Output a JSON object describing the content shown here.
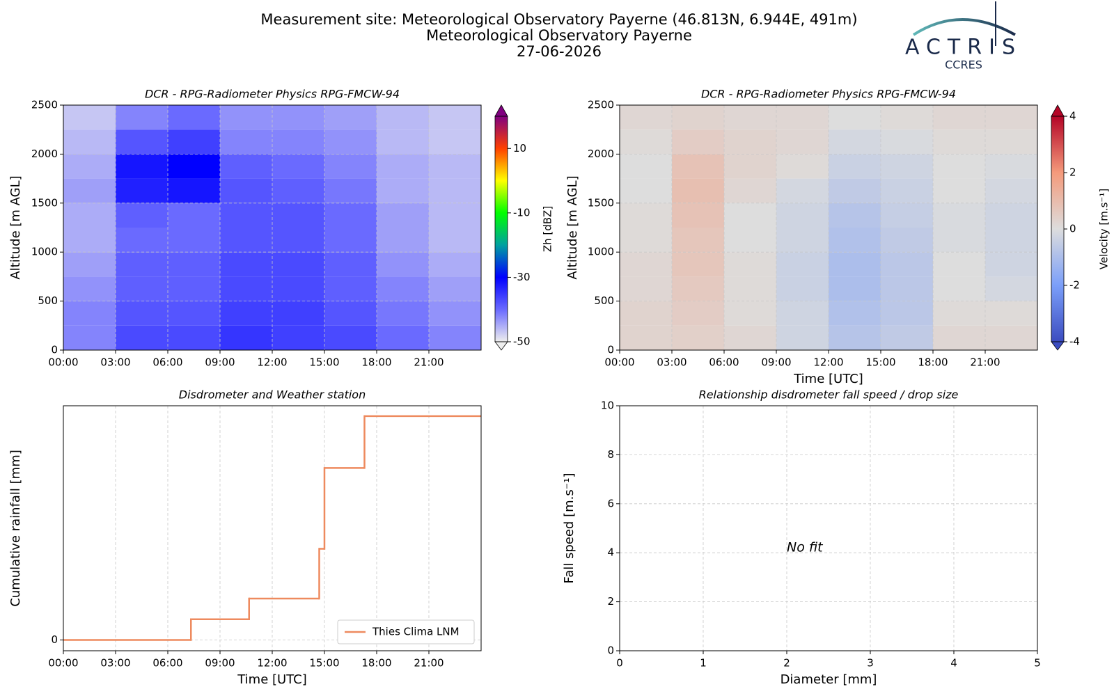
{
  "header": {
    "title_lines": [
      "Measurement site: Meteorological Observatory Payerne (46.813N, 6.944E, 491m)",
      "Meteorological Observatory Payerne",
      "27-06-2026"
    ]
  },
  "logo": {
    "name": "ACTRIS",
    "subtitle": "CCRES"
  },
  "chart_data": [
    {
      "type": "heatmap",
      "title": "DCR - RPG-Radiometer Physics RPG-FMCW-94",
      "ylabel": "Altitude [m AGL]",
      "x_edges": [
        0,
        3,
        6,
        9,
        12,
        15,
        18,
        21,
        24
      ],
      "y_edges": [
        0,
        250,
        500,
        750,
        1000,
        1250,
        1500,
        1750,
        2000,
        2250,
        2500
      ],
      "z": [
        [
          -42,
          -37,
          -37,
          -35,
          -36,
          -37,
          -40,
          -42
        ],
        [
          -42,
          -38,
          -38,
          -36,
          -36,
          -38,
          -41,
          -43
        ],
        [
          -43,
          -39,
          -39,
          -37,
          -37,
          -39,
          -42,
          -44
        ],
        [
          -44,
          -39,
          -39,
          -37,
          -37,
          -39,
          -43,
          -45
        ],
        [
          -45,
          -40,
          -40,
          -38,
          -38,
          -40,
          -44,
          -46
        ],
        [
          -45,
          -39,
          -40,
          -38,
          -38,
          -40,
          -44,
          -46
        ],
        [
          -44,
          -33,
          -32,
          -38,
          -39,
          -41,
          -45,
          -46
        ],
        [
          -45,
          -32,
          -30,
          -39,
          -40,
          -42,
          -45,
          -46
        ],
        [
          -46,
          -38,
          -36,
          -42,
          -42,
          -43,
          -46,
          -47
        ],
        [
          -47,
          -42,
          -40,
          -43,
          -43,
          -44,
          -46,
          -47
        ]
      ],
      "xlim": [
        0,
        24
      ],
      "xticks": [
        {
          "value": 0,
          "label": "00:00"
        },
        {
          "value": 3,
          "label": "03:00"
        },
        {
          "value": 6,
          "label": "06:00"
        },
        {
          "value": 9,
          "label": "09:00"
        },
        {
          "value": 12,
          "label": "12:00"
        },
        {
          "value": 15,
          "label": "15:00"
        },
        {
          "value": 18,
          "label": "18:00"
        },
        {
          "value": 21,
          "label": "21:00"
        }
      ],
      "ylim": [
        0,
        2500
      ],
      "yticks": [
        0,
        500,
        1000,
        1500,
        2000,
        2500
      ],
      "grid": true,
      "colorbar": {
        "label": "Zh [dBZ]",
        "clim": [
          -50,
          20
        ],
        "ticks": [
          -50,
          -30,
          -10,
          10
        ],
        "extend": "both",
        "colors": [
          "#eeeeee",
          "#6a6aff",
          "#0000ff",
          "#00a0a0",
          "#00ff00",
          "#ffff00",
          "#ff4000",
          "#800080"
        ]
      }
    },
    {
      "type": "heatmap",
      "title": "DCR - RPG-Radiometer Physics RPG-FMCW-94",
      "ylabel": "Altitude [m AGL]",
      "xlabel": "Time [UTC]",
      "x_edges": [
        0,
        3,
        6,
        9,
        12,
        15,
        18,
        21,
        24
      ],
      "y_edges": [
        0,
        250,
        500,
        750,
        1000,
        1250,
        1500,
        1750,
        2000,
        2250,
        2500
      ],
      "z": [
        [
          0.3,
          0.4,
          0.2,
          -0.3,
          -0.8,
          -0.6,
          0.2,
          0.2
        ],
        [
          0.3,
          0.5,
          0.1,
          -0.3,
          -0.9,
          -0.7,
          0.1,
          0.1
        ],
        [
          0.2,
          0.6,
          0.1,
          -0.4,
          -1.0,
          -0.7,
          0.0,
          -0.2
        ],
        [
          0.2,
          0.7,
          0.1,
          -0.4,
          -1.0,
          -0.7,
          0.0,
          -0.3
        ],
        [
          0.1,
          0.7,
          0.0,
          -0.3,
          -0.9,
          -0.6,
          -0.1,
          -0.3
        ],
        [
          0.1,
          0.8,
          0.0,
          -0.3,
          -0.8,
          -0.5,
          -0.1,
          -0.3
        ],
        [
          0.0,
          0.9,
          0.2,
          -0.2,
          -0.6,
          -0.4,
          0.0,
          -0.2
        ],
        [
          0.0,
          0.8,
          0.3,
          0.1,
          -0.4,
          -0.3,
          0.0,
          -0.1
        ],
        [
          0.1,
          0.5,
          0.3,
          0.2,
          -0.2,
          -0.1,
          0.1,
          0.1
        ],
        [
          0.2,
          0.3,
          0.2,
          0.2,
          0.0,
          0.1,
          0.2,
          0.2
        ]
      ],
      "xlim": [
        0,
        24
      ],
      "xticks": [
        {
          "value": 0,
          "label": "00:00"
        },
        {
          "value": 3,
          "label": "03:00"
        },
        {
          "value": 6,
          "label": "06:00"
        },
        {
          "value": 9,
          "label": "09:00"
        },
        {
          "value": 12,
          "label": "12:00"
        },
        {
          "value": 15,
          "label": "15:00"
        },
        {
          "value": 18,
          "label": "18:00"
        },
        {
          "value": 21,
          "label": "21:00"
        }
      ],
      "ylim": [
        0,
        2500
      ],
      "yticks": [
        0,
        500,
        1000,
        1500,
        2000,
        2500
      ],
      "grid": true,
      "colorbar": {
        "label": "Velocity [m.s⁻¹]",
        "clim": [
          -4,
          4
        ],
        "ticks": [
          -4,
          -2,
          0,
          2,
          4
        ],
        "extend": "both",
        "colors": [
          "#3b4cc0",
          "#7b9ff9",
          "#dddddd",
          "#f49a7b",
          "#b40426"
        ]
      }
    },
    {
      "type": "line",
      "title": "Disdrometer and Weather station",
      "xlabel": "Time [UTC]",
      "ylabel": "Cumulative rainfall [mm]",
      "drawstyle": "steps-post",
      "x": [
        0,
        7.33,
        10.67,
        14.7,
        15.0,
        17.3
      ],
      "series": [
        {
          "name": "Thies Clima LNM",
          "color": "#ee8a5e",
          "values": [
            0,
            0.1,
            0.2,
            0.44,
            0.83,
            1.08
          ]
        }
      ],
      "xlim": [
        0,
        24
      ],
      "xticks": [
        {
          "value": 0,
          "label": "00:00"
        },
        {
          "value": 3,
          "label": "03:00"
        },
        {
          "value": 6,
          "label": "06:00"
        },
        {
          "value": 9,
          "label": "09:00"
        },
        {
          "value": 12,
          "label": "12:00"
        },
        {
          "value": 15,
          "label": "15:00"
        },
        {
          "value": 18,
          "label": "18:00"
        },
        {
          "value": 21,
          "label": "21:00"
        }
      ],
      "ylim": [
        -0.052,
        1.13
      ],
      "yticks": [
        0
      ],
      "grid": true,
      "legend": "lower right"
    },
    {
      "type": "scatter",
      "title": "Relationship disdrometer fall speed / drop size",
      "xlabel": "Diameter [mm]",
      "ylabel": "Fall speed [m.s⁻¹]",
      "xlim": [
        0,
        5
      ],
      "xticks": [
        0,
        1,
        2,
        3,
        4,
        5
      ],
      "ylim": [
        0,
        10
      ],
      "yticks": [
        0,
        2,
        4,
        6,
        8,
        10
      ],
      "grid": true,
      "annotations": [
        {
          "text": "No fit",
          "x": 2,
          "y": 4.2
        }
      ]
    }
  ]
}
